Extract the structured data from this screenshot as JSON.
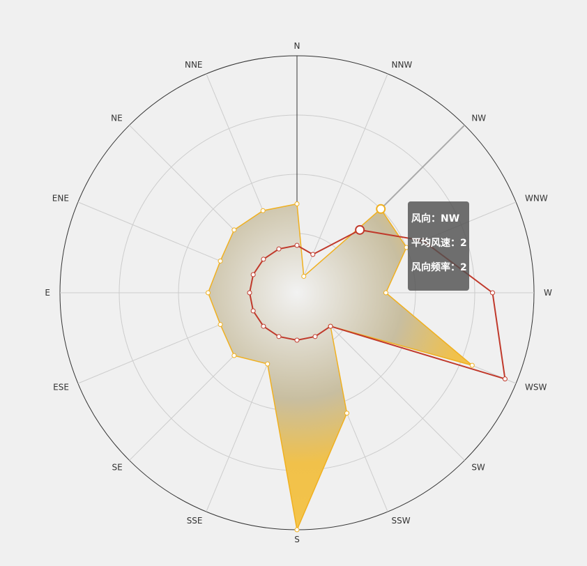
{
  "chart_data": {
    "type": "radar",
    "directions": [
      "N",
      "NNW",
      "NW",
      "WNW",
      "W",
      "WSW",
      "SW",
      "SSW",
      "S",
      "SSE",
      "SE",
      "ESE",
      "E",
      "ENE",
      "NE",
      "NNE"
    ],
    "rlim": [
      0,
      4
    ],
    "grid": true,
    "series": [
      {
        "values": [
          1.5,
          0.3,
          2.0,
          2.0,
          1.5,
          3.2,
          0.8,
          2.2,
          4.0,
          1.3,
          1.5,
          1.4,
          1.5,
          1.4,
          1.5,
          1.5
        ],
        "color": "#f0b020"
      },
      {
        "values": [
          0.8,
          0.7,
          1.5,
          2.3,
          3.3,
          3.8,
          0.8,
          0.8,
          0.8,
          0.8,
          0.8,
          0.8,
          0.8,
          0.8,
          0.8,
          0.8
        ],
        "color": "#c0392b"
      }
    ],
    "highlight_index": 2
  },
  "tooltip": {
    "direction_label": "风向：",
    "direction_value": "NW",
    "speed_label": "平均风速：",
    "speed_value": "2",
    "freq_label": "风向频率：",
    "freq_value": "2"
  }
}
